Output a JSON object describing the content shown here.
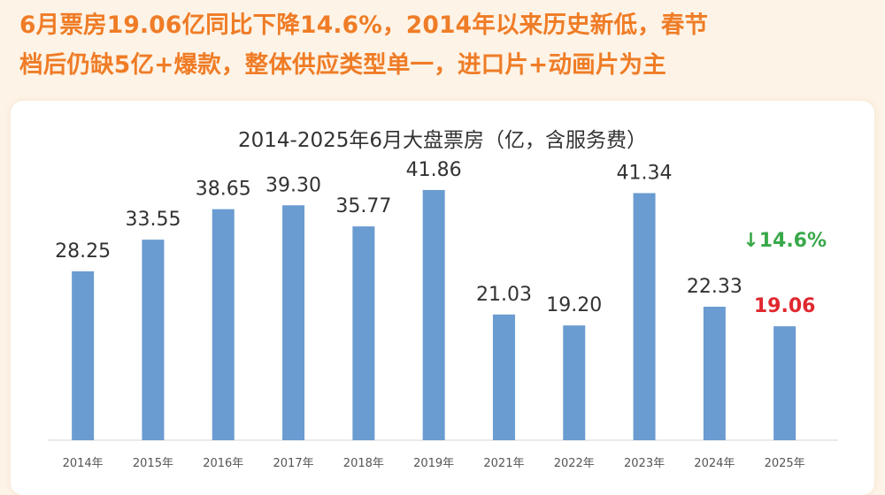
{
  "headline": {
    "line1": "6月票房19.06亿同比下降14.6%，2014年以来历史新低，春节",
    "line2": "档后仍缺5亿+爆款，整体供应类型单一，进口片+动画片为主"
  },
  "colors": {
    "headline": "#ef7c26",
    "bar": "#6a9bd1",
    "label": "#333333",
    "highlight_label": "#e0282e",
    "change": "#3aa84a"
  },
  "chart_data": {
    "type": "bar",
    "title": "2014-2025年6月大盘票房（亿，含服务费）",
    "categories": [
      "2014年",
      "2015年",
      "2016年",
      "2017年",
      "2018年",
      "2019年",
      "2021年",
      "2022年",
      "2023年",
      "2024年",
      "2025年"
    ],
    "values": [
      28.25,
      33.55,
      38.65,
      39.3,
      35.77,
      41.86,
      21.03,
      19.2,
      41.34,
      22.33,
      19.06
    ],
    "value_labels": [
      "28.25",
      "33.55",
      "38.65",
      "39.30",
      "35.77",
      "41.86",
      "21.03",
      "19.20",
      "41.34",
      "22.33",
      "19.06"
    ],
    "highlight_index": 10,
    "annotation": "↓14.6%",
    "xlabel": "",
    "ylabel": "",
    "ylim": [
      0,
      42
    ],
    "grid": false,
    "legend": "none"
  }
}
